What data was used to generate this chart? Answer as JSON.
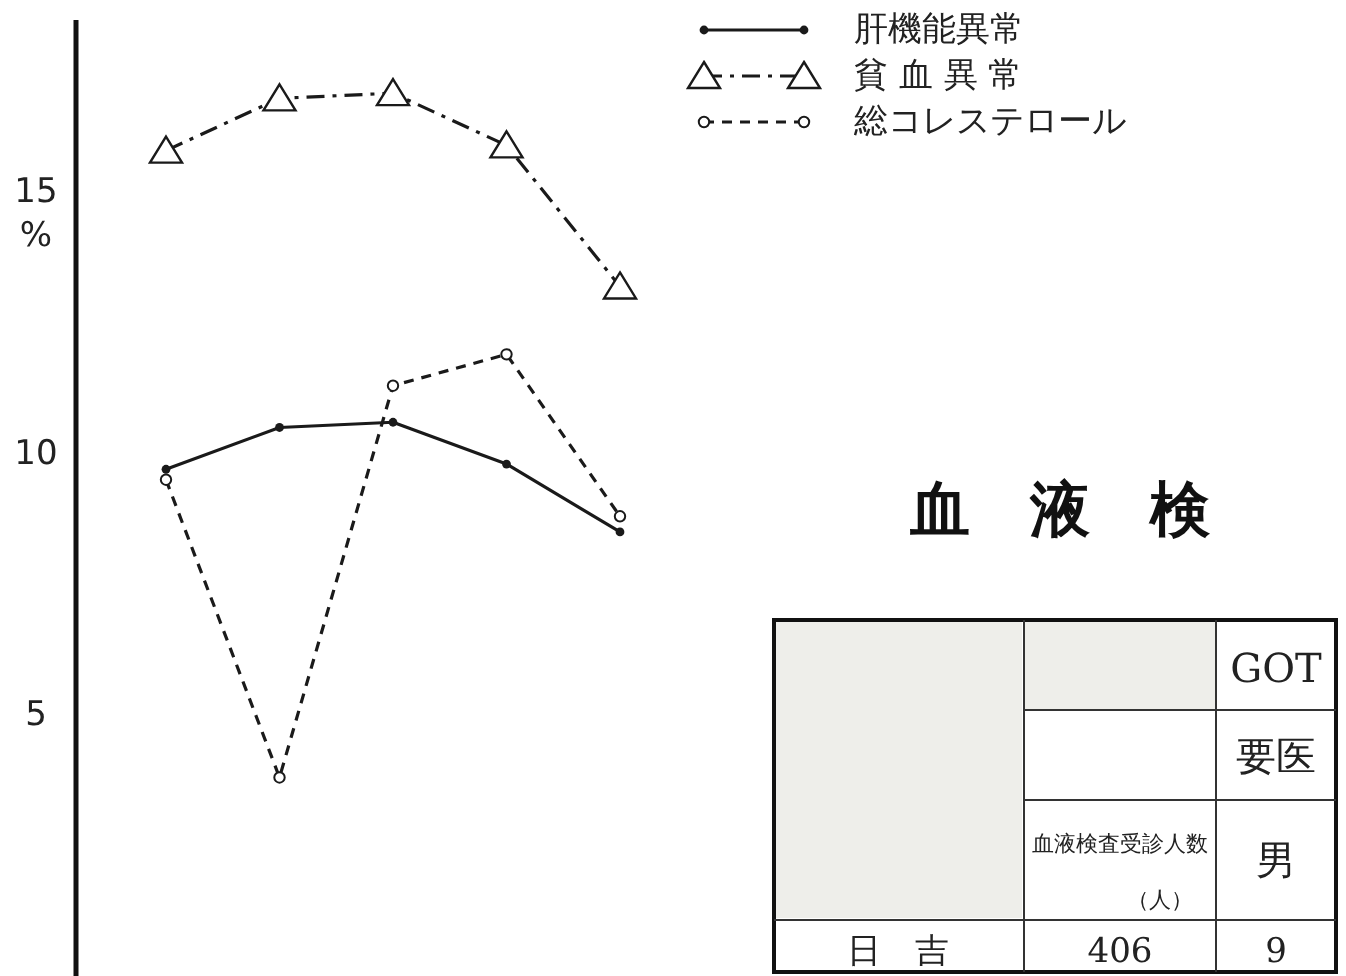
{
  "chart_data": {
    "type": "line",
    "ylabel": "%",
    "categories": [
      null,
      null,
      null,
      null,
      null
    ],
    "ylim": [
      0,
      18.3
    ],
    "yticks": [
      5,
      10,
      15
    ],
    "grid": false,
    "legend": "top right",
    "series": [
      {
        "name": "肝機能異常",
        "color": "#1a1a1a",
        "marker": "circle",
        "line_style": "solid",
        "values": [
          9.7,
          10.5,
          10.6,
          9.8,
          8.5
        ]
      },
      {
        "name": "貧 血 異 常",
        "color": "#1a1a1a",
        "marker": "triangle",
        "line_style": "dashdot",
        "values": [
          15.8,
          16.8,
          16.9,
          15.9,
          13.2
        ]
      },
      {
        "name": "総コレステロール",
        "color": "#1a1a1a",
        "marker": "open circle",
        "line_style": "dashed",
        "values": [
          9.5,
          3.8,
          11.3,
          11.9,
          8.8
        ]
      }
    ],
    "annotations": [
      "血　液　検",
      "GOT",
      "要医",
      "血液検査受診人数",
      "（人）",
      "男",
      "日　吉",
      "406",
      "9"
    ]
  }
}
